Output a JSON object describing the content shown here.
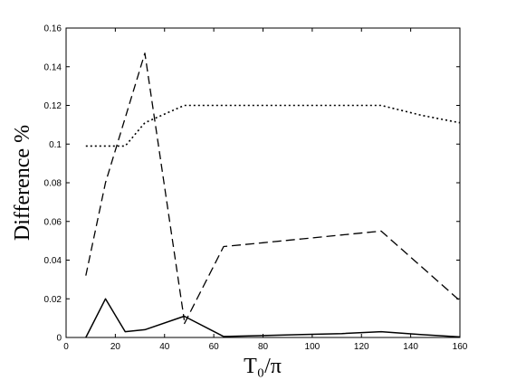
{
  "chart_data": {
    "type": "line",
    "xlabel": "T₀/π",
    "ylabel": "Difference %",
    "xlim": [
      0,
      160
    ],
    "ylim": [
      0,
      0.16
    ],
    "xticks": [
      0,
      20,
      40,
      60,
      80,
      100,
      120,
      140,
      160
    ],
    "yticks": [
      0,
      0.02,
      0.04,
      0.06,
      0.08,
      0.1,
      0.12,
      0.14,
      0.16
    ],
    "xtick_labels": [
      "0",
      "20",
      "40",
      "60",
      "80",
      "100",
      "120",
      "140",
      "160"
    ],
    "ytick_labels": [
      "0",
      "0.02",
      "0.04",
      "0.06",
      "0.08",
      "0.1",
      "0.12",
      "0.14",
      "0.16"
    ],
    "grid": false,
    "legend": false,
    "series": [
      {
        "style": "solid",
        "x": [
          8,
          16,
          24,
          32,
          48,
          64,
          80,
          96,
          112,
          128,
          144,
          160
        ],
        "y": [
          0.0,
          0.02,
          0.003,
          0.004,
          0.011,
          0.0005,
          0.001,
          0.0015,
          0.002,
          0.003,
          0.0015,
          0.0003
        ]
      },
      {
        "style": "dash",
        "x": [
          8,
          16,
          32,
          48
        ],
        "y": [
          0.032,
          0.08,
          0.147,
          0.009
        ]
      },
      {
        "style": "dash-long",
        "x": [
          48,
          64,
          80,
          96,
          112,
          128,
          144,
          160
        ],
        "y": [
          0.007,
          0.047,
          0.049,
          0.051,
          0.053,
          0.055,
          0.037,
          0.019
        ]
      },
      {
        "style": "dot",
        "x": [
          8,
          16,
          24,
          32,
          48,
          64,
          80,
          96,
          112,
          128,
          144,
          160
        ],
        "y": [
          0.099,
          0.099,
          0.099,
          0.111,
          0.12,
          0.12,
          0.12,
          0.12,
          0.12,
          0.12,
          0.115,
          0.111
        ]
      }
    ]
  }
}
